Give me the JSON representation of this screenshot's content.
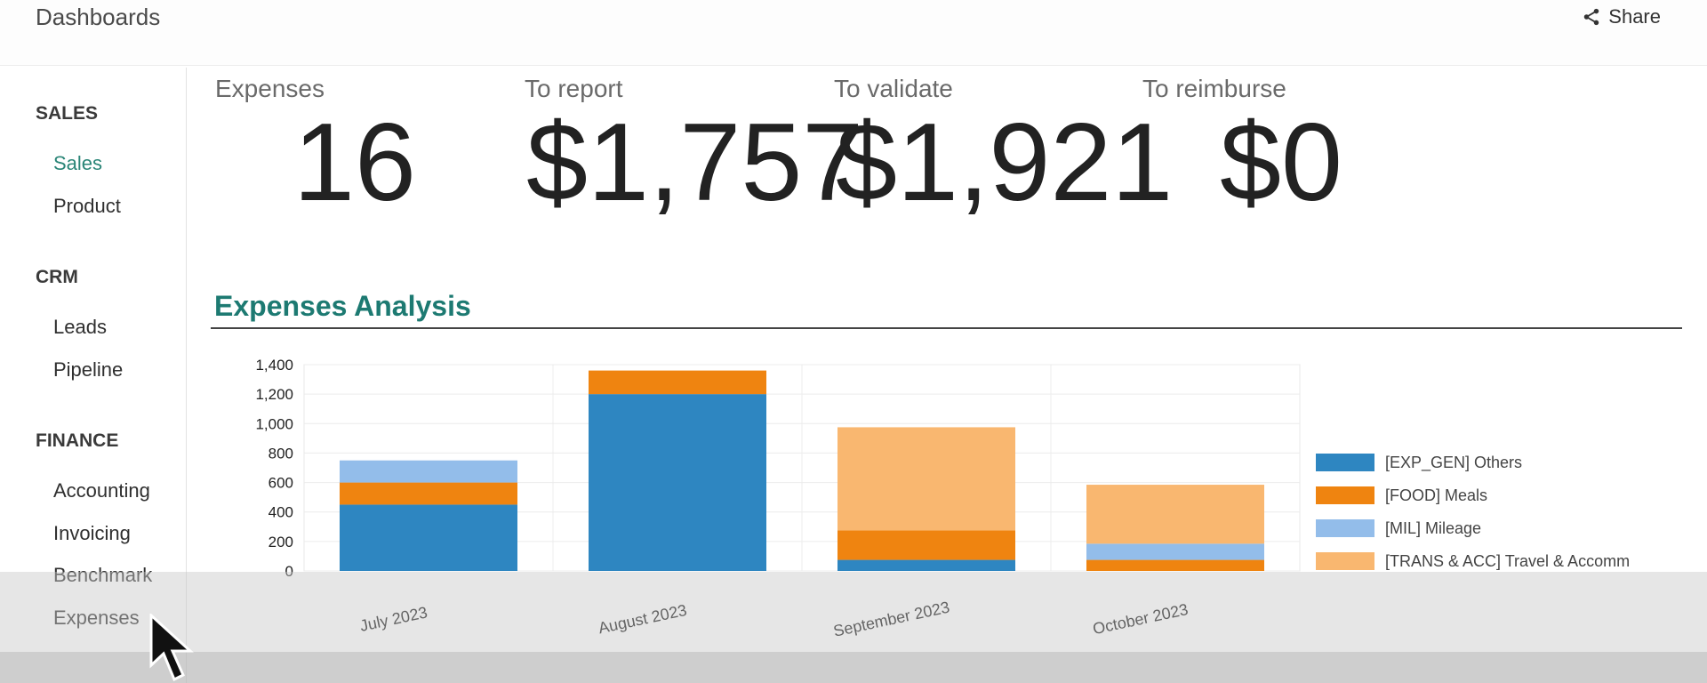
{
  "header": {
    "title": "Dashboards",
    "share_label": "Share"
  },
  "sidebar": {
    "sections": [
      {
        "title": "SALES",
        "items": [
          "Sales",
          "Product"
        ]
      },
      {
        "title": "CRM",
        "items": [
          "Leads",
          "Pipeline"
        ]
      },
      {
        "title": "FINANCE",
        "items": [
          "Accounting",
          "Invoicing",
          "Benchmark",
          "Expenses"
        ]
      }
    ],
    "active_item": "Sales"
  },
  "kpis": [
    {
      "label": "Expenses",
      "value": "16"
    },
    {
      "label": "To report",
      "value": "$1,757"
    },
    {
      "label": "To validate",
      "value": "$1,921"
    },
    {
      "label": "To reimburse",
      "value": "$0"
    }
  ],
  "analysis": {
    "title": "Expenses Analysis"
  },
  "chart_data": {
    "type": "bar",
    "stacked": true,
    "categories": [
      "July 2023",
      "August 2023",
      "September 2023",
      "October 2023"
    ],
    "series": [
      {
        "name": "[EXP_GEN] Others",
        "color": "#2e86c1",
        "values": [
          450,
          1200,
          75,
          0
        ]
      },
      {
        "name": "[FOOD] Meals",
        "color": "#ef8410",
        "values": [
          150,
          160,
          200,
          75
        ]
      },
      {
        "name": "[MIL] Mileage",
        "color": "#93bdea",
        "values": [
          150,
          0,
          0,
          110
        ]
      },
      {
        "name": "[TRANS & ACC] Travel & Accomm",
        "color": "#f9b770",
        "values": [
          0,
          0,
          700,
          400
        ]
      }
    ],
    "y_ticks": [
      "0",
      "200",
      "400",
      "600",
      "800",
      "1,000",
      "1,200",
      "1,400"
    ],
    "ylim": [
      0,
      1400
    ],
    "grid": true,
    "legend_position": "right"
  },
  "colors": {
    "accent": "#1d7a72",
    "active_menu": "#2a8577"
  }
}
